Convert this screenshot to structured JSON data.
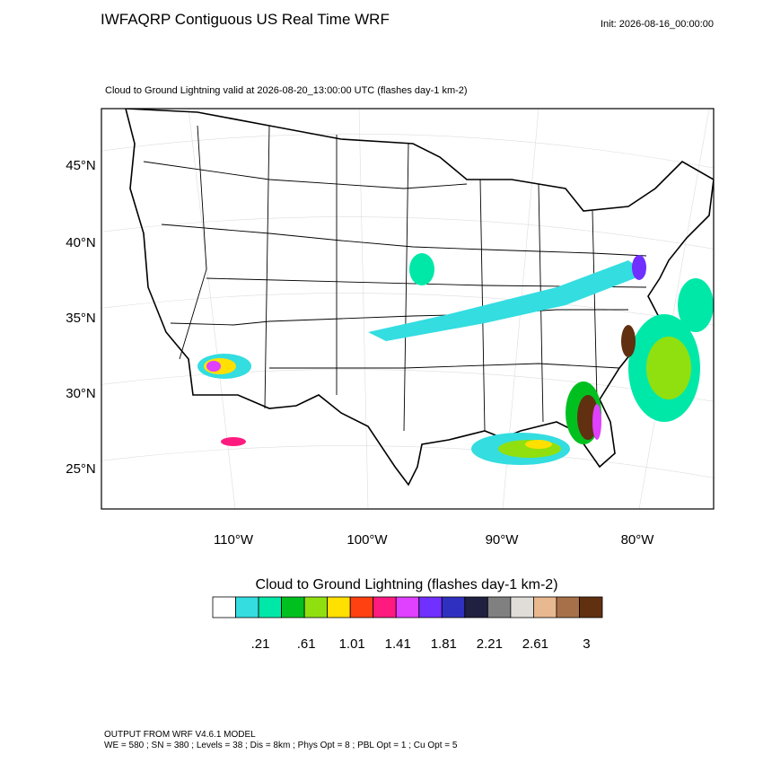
{
  "header": {
    "title": "IWFAQRP Contiguous US Real Time WRF",
    "init": "Init: 2026-08-16_00:00:00"
  },
  "map": {
    "subtitle": "Cloud to Ground Lightning valid at 2026-08-20_13:00:00 UTC   (flashes day-1 km-2)",
    "lat_labels": [
      "45°N",
      "40°N",
      "35°N",
      "30°N",
      "25°N"
    ],
    "lon_labels": [
      "110°W",
      "100°W",
      "90°W",
      "80°W"
    ]
  },
  "legend": {
    "title": "Cloud to Ground Lightning  (flashes day-1 km-2)",
    "colors": [
      "#ffffff",
      "#33dde0",
      "#00e8a8",
      "#00c020",
      "#90e010",
      "#ffe000",
      "#ff4010",
      "#ff1a80",
      "#e040ff",
      "#7030ff",
      "#3030c0",
      "#202040",
      "#808080",
      "#e0ddd8",
      "#e8b890",
      "#a87048",
      "#603010"
    ],
    "labels": [
      ".21",
      ".61",
      "1.01",
      "1.41",
      "1.81",
      "2.21",
      "2.61",
      "3"
    ]
  },
  "footer": {
    "line1": "OUTPUT FROM WRF V4.6.1 MODEL",
    "line2": "WE = 580 ; SN = 380 ; Levels = 38 ; Dis = 8km ; Phys Opt = 8 ; PBL Opt = 1 ; Cu Opt = 5"
  }
}
